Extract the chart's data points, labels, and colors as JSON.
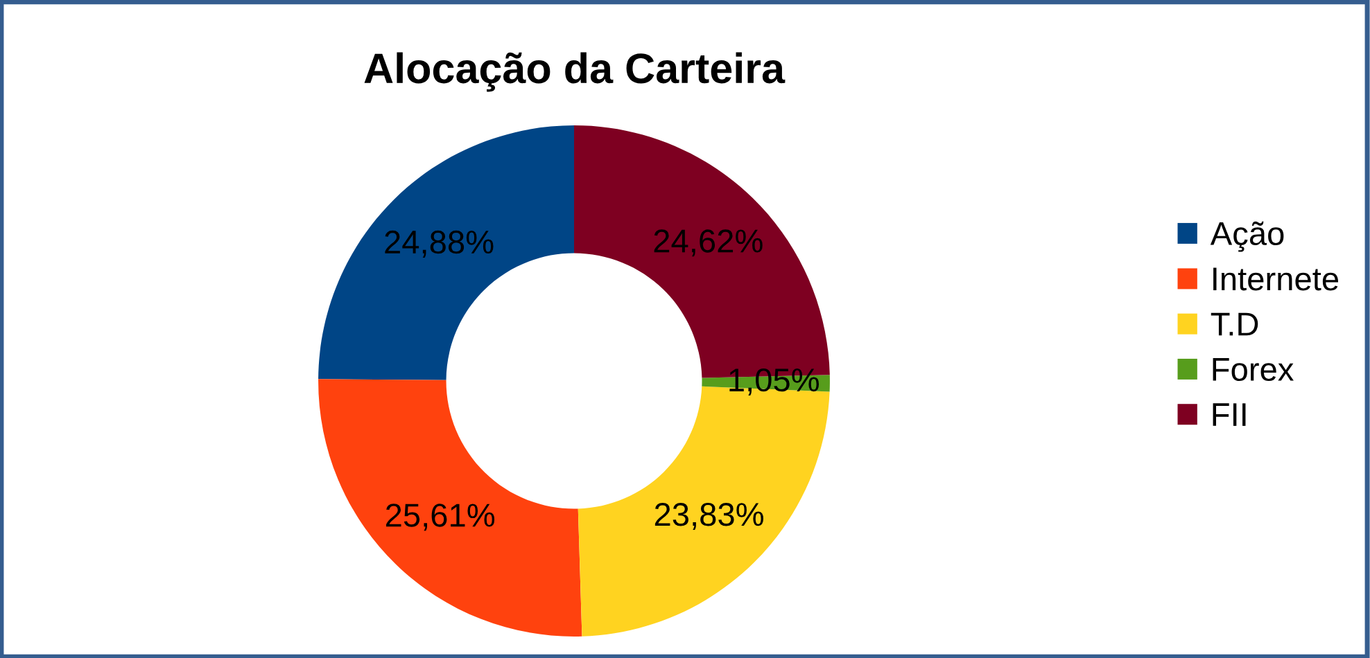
{
  "chart_data": {
    "type": "donut",
    "title": "Alocação da Carteira",
    "categories": [
      "Ação",
      "Internete",
      "T.D",
      "Forex",
      "FII"
    ],
    "values": [
      24.88,
      25.61,
      23.83,
      1.05,
      24.62
    ],
    "value_labels": [
      "24,88%",
      "25,61%",
      "23,83%",
      "1,05%",
      "24,62%"
    ],
    "colors": [
      "#004586",
      "#ff420e",
      "#ffd320",
      "#579d1c",
      "#7e0021"
    ],
    "legend": "right"
  }
}
